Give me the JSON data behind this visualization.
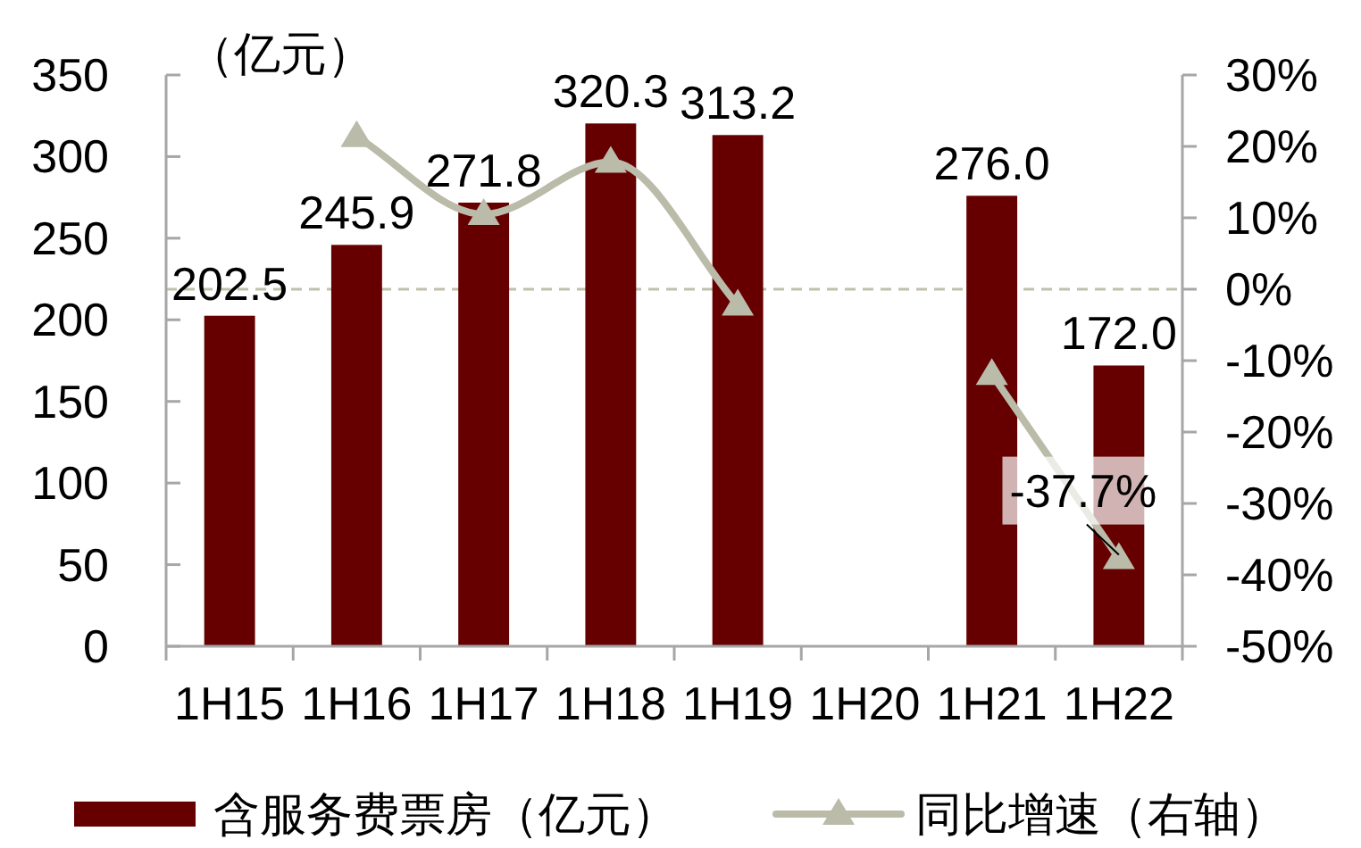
{
  "chart_data": {
    "type": "bar",
    "ylabel": "（亿元）",
    "categories": [
      "1H15",
      "1H16",
      "1H17",
      "1H18",
      "1H19",
      "1H20",
      "1H21",
      "1H22"
    ],
    "series": [
      {
        "name": "含服务费票房（亿元）",
        "color": "#660000",
        "values": [
          202.5,
          245.9,
          271.8,
          320.3,
          313.2,
          null,
          276.0,
          172.0
        ],
        "value_labels": [
          "202.5",
          "245.9",
          "271.8",
          "320.3",
          "313.2",
          null,
          "276.0",
          "172.0"
        ]
      },
      {
        "name": "同比增速（右轴）",
        "type": "line",
        "axis": "y2",
        "color": "#bbbbaa",
        "values": [
          null,
          21.4,
          10.5,
          17.8,
          -2.2,
          null,
          -11.9,
          -37.7
        ],
        "value_labels": [
          null,
          null,
          null,
          null,
          null,
          null,
          null,
          "-37.7%"
        ]
      }
    ],
    "ylim": [
      0,
      350
    ],
    "yticks": [
      0,
      50,
      100,
      150,
      200,
      250,
      300,
      350
    ],
    "y2lim": [
      -50,
      30
    ],
    "y2ticks": [
      {
        "value": -50,
        "label": "-50%"
      },
      {
        "value": -40,
        "label": "-40%"
      },
      {
        "value": -30,
        "label": "-30%"
      },
      {
        "value": -20,
        "label": "-20%"
      },
      {
        "value": -10,
        "label": "-10%"
      },
      {
        "value": 0,
        "label": "0%"
      },
      {
        "value": 10,
        "label": "10%"
      },
      {
        "value": 20,
        "label": "20%"
      },
      {
        "value": 30,
        "label": "30%"
      }
    ],
    "ref_lines": [
      {
        "axis": "y2",
        "value": 0,
        "color": "#c2bfab",
        "line_style": "dashed"
      }
    ],
    "marker": "triangle",
    "legend": "bottom",
    "grid": false
  }
}
